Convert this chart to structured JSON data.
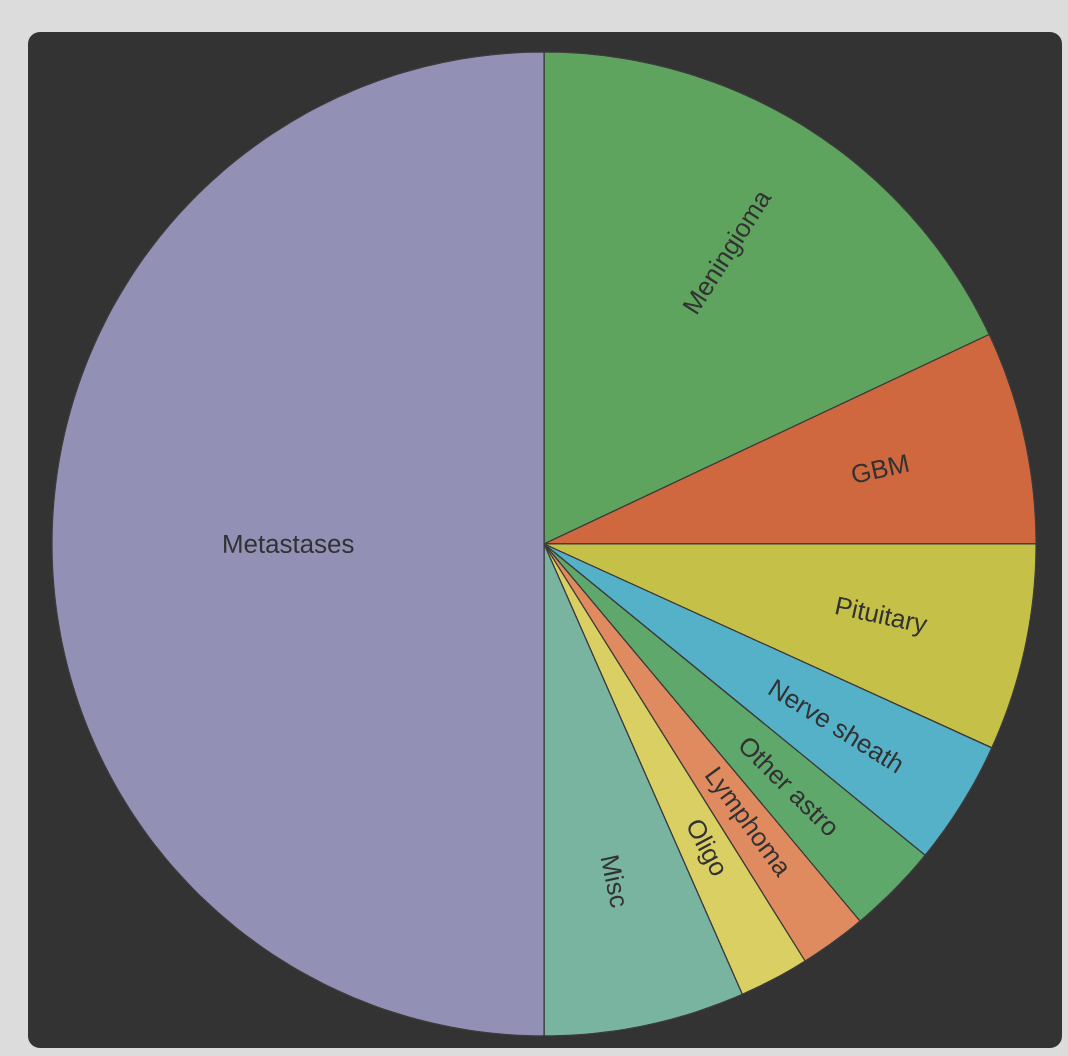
{
  "chart_data": {
    "type": "pie",
    "categories": [
      "Meningioma",
      "GBM",
      "Pituitary",
      "Nerve sheath",
      "Other astro",
      "Lymphoma",
      "Oligo",
      "Misc",
      "Metastases"
    ],
    "values": [
      18,
      7,
      6.8,
      4.1,
      3,
      2.2,
      2.3,
      6.6,
      50
    ],
    "colors": [
      "#5ea35e",
      "#d0683f",
      "#c4c048",
      "#55b1c8",
      "#5fa86b",
      "#e08a5f",
      "#d9cf63",
      "#79b4a0",
      "#9390b6"
    ]
  }
}
